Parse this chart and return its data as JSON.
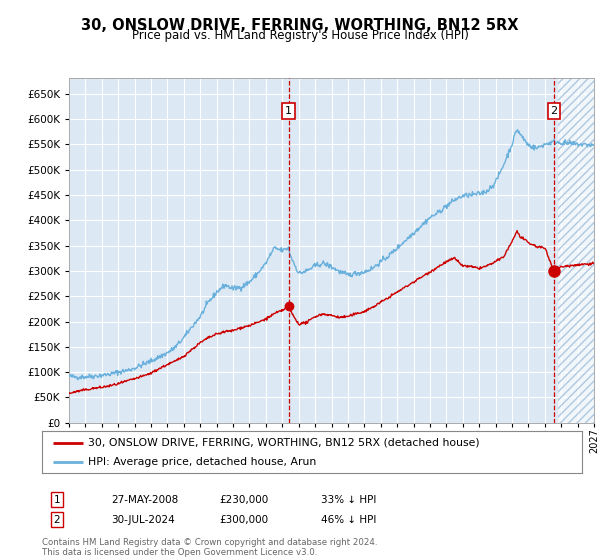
{
  "title": "30, ONSLOW DRIVE, FERRING, WORTHING, BN12 5RX",
  "subtitle": "Price paid vs. HM Land Registry's House Price Index (HPI)",
  "legend_line1": "30, ONSLOW DRIVE, FERRING, WORTHING, BN12 5RX (detached house)",
  "legend_line2": "HPI: Average price, detached house, Arun",
  "annotation1_date": "27-MAY-2008",
  "annotation1_price": 230000,
  "annotation1_price_str": "£230,000",
  "annotation1_hpi": "33% ↓ HPI",
  "annotation1_year": 2008.38,
  "annotation2_date": "30-JUL-2024",
  "annotation2_price": 300000,
  "annotation2_price_str": "£300,000",
  "annotation2_hpi": "46% ↓ HPI",
  "annotation2_year": 2024.57,
  "hpi_color": "#6ab0dc",
  "price_color": "#cc0000",
  "background_color": "#dce9f5",
  "grid_color": "#ffffff",
  "annotation_color": "#cc0000",
  "hatch_color": "#b0c8e0",
  "footer": "Contains HM Land Registry data © Crown copyright and database right 2024.\nThis data is licensed under the Open Government Licence v3.0.",
  "ylim": [
    0,
    680000
  ],
  "xlim_start": 1995,
  "xlim_end": 2027,
  "hpi_anchors": [
    [
      1995.0,
      92000
    ],
    [
      1995.5,
      90000
    ],
    [
      1996.0,
      91000
    ],
    [
      1996.5,
      92000
    ],
    [
      1997.0,
      94000
    ],
    [
      1997.5,
      96000
    ],
    [
      1998.0,
      100000
    ],
    [
      1998.5,
      103000
    ],
    [
      1999.0,
      108000
    ],
    [
      1999.5,
      115000
    ],
    [
      2000.0,
      122000
    ],
    [
      2000.5,
      130000
    ],
    [
      2001.0,
      138000
    ],
    [
      2001.5,
      150000
    ],
    [
      2002.0,
      168000
    ],
    [
      2002.5,
      190000
    ],
    [
      2003.0,
      210000
    ],
    [
      2003.5,
      238000
    ],
    [
      2004.0,
      258000
    ],
    [
      2004.5,
      272000
    ],
    [
      2005.0,
      265000
    ],
    [
      2005.5,
      268000
    ],
    [
      2006.0,
      278000
    ],
    [
      2006.5,
      295000
    ],
    [
      2007.0,
      315000
    ],
    [
      2007.5,
      345000
    ],
    [
      2008.0,
      340000
    ],
    [
      2008.38,
      345000
    ],
    [
      2008.5,
      330000
    ],
    [
      2009.0,
      295000
    ],
    [
      2009.5,
      300000
    ],
    [
      2010.0,
      310000
    ],
    [
      2010.5,
      315000
    ],
    [
      2011.0,
      308000
    ],
    [
      2011.5,
      298000
    ],
    [
      2012.0,
      292000
    ],
    [
      2012.5,
      295000
    ],
    [
      2013.0,
      298000
    ],
    [
      2013.5,
      305000
    ],
    [
      2014.0,
      318000
    ],
    [
      2014.5,
      330000
    ],
    [
      2015.0,
      345000
    ],
    [
      2015.5,
      360000
    ],
    [
      2016.0,
      375000
    ],
    [
      2016.5,
      390000
    ],
    [
      2017.0,
      405000
    ],
    [
      2017.5,
      415000
    ],
    [
      2018.0,
      428000
    ],
    [
      2018.5,
      440000
    ],
    [
      2019.0,
      448000
    ],
    [
      2019.5,
      450000
    ],
    [
      2020.0,
      452000
    ],
    [
      2020.5,
      458000
    ],
    [
      2021.0,
      475000
    ],
    [
      2021.5,
      510000
    ],
    [
      2022.0,
      550000
    ],
    [
      2022.3,
      580000
    ],
    [
      2022.5,
      570000
    ],
    [
      2023.0,
      548000
    ],
    [
      2023.5,
      542000
    ],
    [
      2024.0,
      550000
    ],
    [
      2024.57,
      555000
    ],
    [
      2025.0,
      553000
    ],
    [
      2026.0,
      550000
    ],
    [
      2027.0,
      548000
    ]
  ],
  "price_anchors": [
    [
      1995.0,
      58000
    ],
    [
      1995.5,
      62000
    ],
    [
      1996.0,
      65000
    ],
    [
      1996.5,
      68000
    ],
    [
      1997.0,
      70000
    ],
    [
      1997.5,
      73000
    ],
    [
      1998.0,
      77000
    ],
    [
      1998.5,
      82000
    ],
    [
      1999.0,
      87000
    ],
    [
      1999.5,
      92000
    ],
    [
      2000.0,
      98000
    ],
    [
      2000.5,
      107000
    ],
    [
      2001.0,
      115000
    ],
    [
      2001.5,
      122000
    ],
    [
      2002.0,
      132000
    ],
    [
      2002.5,
      145000
    ],
    [
      2003.0,
      158000
    ],
    [
      2003.5,
      168000
    ],
    [
      2004.0,
      175000
    ],
    [
      2004.5,
      180000
    ],
    [
      2005.0,
      182000
    ],
    [
      2005.5,
      188000
    ],
    [
      2006.0,
      192000
    ],
    [
      2006.5,
      198000
    ],
    [
      2007.0,
      205000
    ],
    [
      2007.5,
      215000
    ],
    [
      2008.0,
      222000
    ],
    [
      2008.38,
      230000
    ],
    [
      2008.6,
      215000
    ],
    [
      2009.0,
      195000
    ],
    [
      2009.5,
      198000
    ],
    [
      2010.0,
      210000
    ],
    [
      2010.5,
      215000
    ],
    [
      2011.0,
      212000
    ],
    [
      2011.5,
      208000
    ],
    [
      2012.0,
      210000
    ],
    [
      2012.5,
      215000
    ],
    [
      2013.0,
      220000
    ],
    [
      2013.5,
      228000
    ],
    [
      2014.0,
      238000
    ],
    [
      2014.5,
      248000
    ],
    [
      2015.0,
      258000
    ],
    [
      2015.5,
      268000
    ],
    [
      2016.0,
      278000
    ],
    [
      2016.5,
      288000
    ],
    [
      2017.0,
      298000
    ],
    [
      2017.5,
      308000
    ],
    [
      2018.0,
      318000
    ],
    [
      2018.5,
      325000
    ],
    [
      2019.0,
      310000
    ],
    [
      2019.5,
      308000
    ],
    [
      2020.0,
      305000
    ],
    [
      2020.5,
      310000
    ],
    [
      2021.0,
      318000
    ],
    [
      2021.5,
      328000
    ],
    [
      2022.0,
      358000
    ],
    [
      2022.3,
      378000
    ],
    [
      2022.5,
      368000
    ],
    [
      2023.0,
      355000
    ],
    [
      2023.5,
      348000
    ],
    [
      2024.0,
      345000
    ],
    [
      2024.57,
      300000
    ],
    [
      2025.0,
      308000
    ],
    [
      2026.0,
      312000
    ],
    [
      2027.0,
      315000
    ]
  ]
}
